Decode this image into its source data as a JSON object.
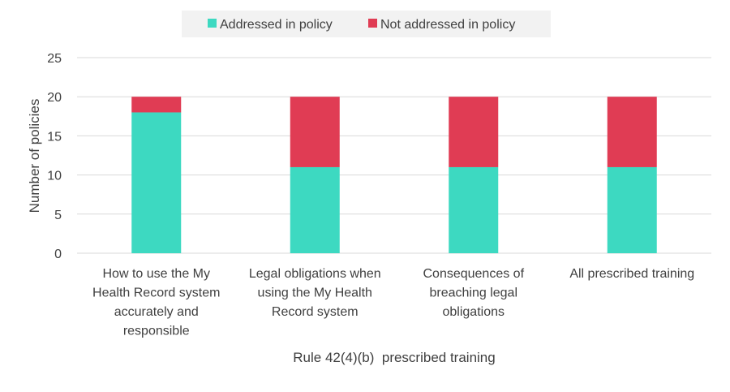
{
  "chart_data": {
    "type": "bar",
    "stacked": true,
    "categories": [
      [
        "How to use the My",
        "Health Record system",
        "accurately and",
        "responsible"
      ],
      [
        "Legal obligations when",
        "using the My Health",
        "Record system"
      ],
      [
        "Consequences of",
        "breaching legal",
        "obligations"
      ],
      [
        "All prescribed training"
      ]
    ],
    "series": [
      {
        "name": "Addressed in policy",
        "color": "#3dd9c1",
        "values": [
          18,
          11,
          11,
          11
        ]
      },
      {
        "name": "Not addressed in policy",
        "color": "#e03c54",
        "values": [
          2,
          9,
          9,
          9
        ]
      }
    ],
    "xlabel": "Rule 42(4)(b)  prescribed training",
    "ylabel": "Number of policies",
    "ylim": [
      0,
      25
    ],
    "yticks": [
      0,
      5,
      10,
      15,
      20,
      25
    ],
    "grid": true,
    "legend_position": "top-center"
  }
}
